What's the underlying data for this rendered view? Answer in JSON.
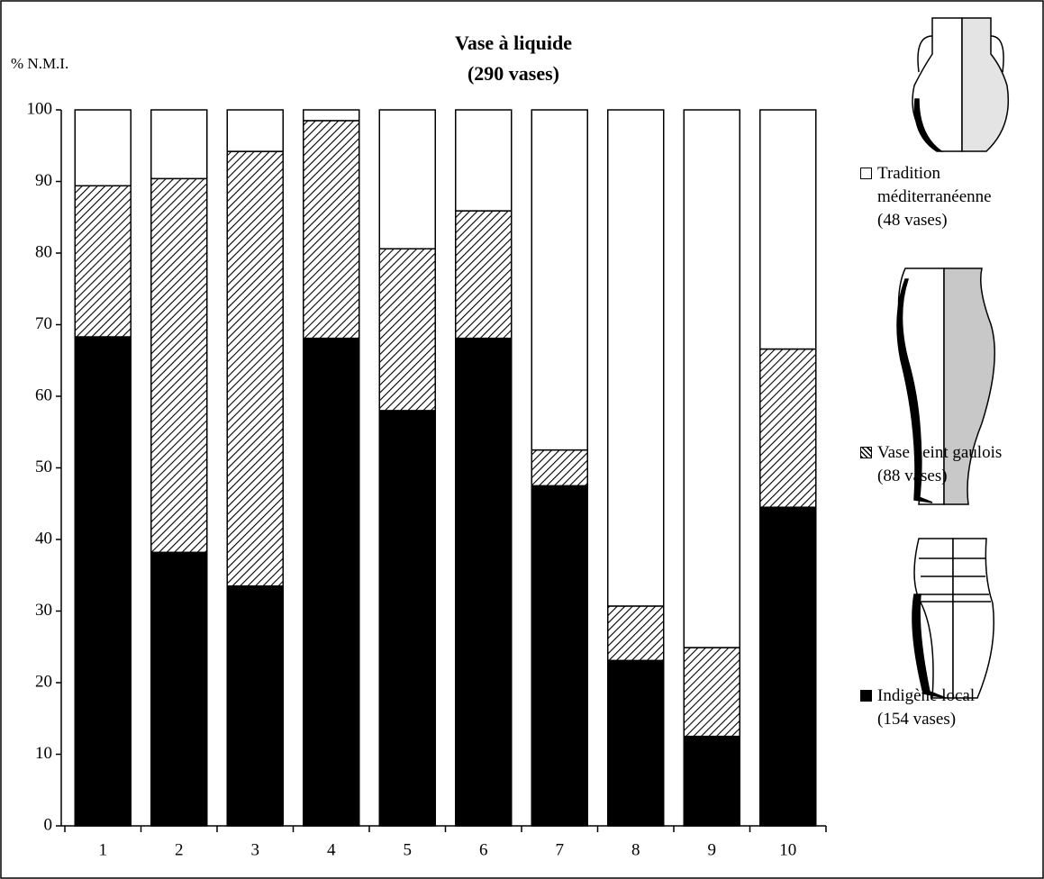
{
  "chart_data": {
    "type": "stacked-bar",
    "title": "Vase à liquide",
    "subtitle": "(290 vases)",
    "y_label": "% N.M.I.",
    "categories": [
      "1",
      "2",
      "3",
      "4",
      "5",
      "6",
      "7",
      "8",
      "9",
      "10"
    ],
    "series": [
      {
        "name": "Indigène local",
        "count_label": "(154 vases)",
        "color": "#000000",
        "pattern": "solid",
        "values": [
          68.3,
          38.2,
          33.5,
          68.1,
          58.0,
          68.1,
          47.5,
          23.1,
          12.5,
          44.5
        ]
      },
      {
        "name": "Vase peint gaulois",
        "count_label": "(88 vases)",
        "color": "#000000",
        "pattern": "hatch",
        "values": [
          21.1,
          52.2,
          60.7,
          30.4,
          22.6,
          17.8,
          5.0,
          7.6,
          12.4,
          22.1
        ]
      },
      {
        "name": "Tradition méditerranéenne",
        "count_label": "(48 vases)",
        "color": "#ffffff",
        "pattern": "solid",
        "values": [
          10.6,
          9.6,
          5.8,
          1.5,
          19.4,
          14.1,
          47.5,
          69.3,
          75.1,
          33.4
        ]
      }
    ],
    "ylim": [
      0,
      100
    ],
    "yticks": [
      0,
      10,
      20,
      30,
      40,
      50,
      60,
      70,
      80,
      90,
      100
    ],
    "grid": false
  }
}
